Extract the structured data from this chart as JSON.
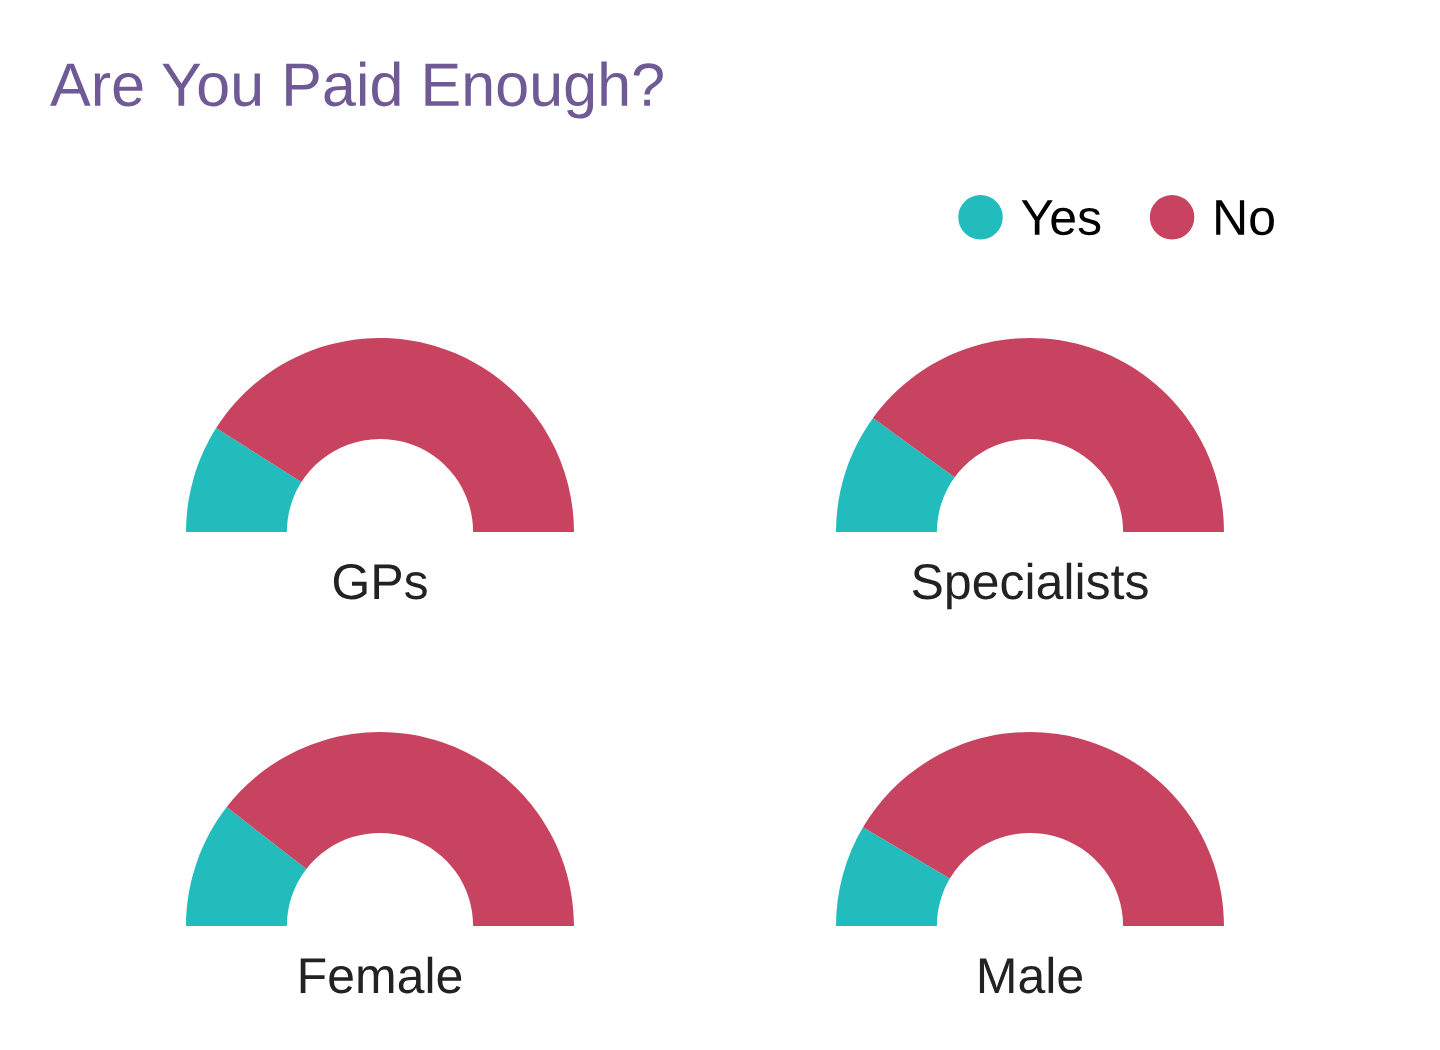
{
  "chart_data": {
    "type": "donut",
    "title": "Are You Paid Enough?",
    "categories": [
      "Yes",
      "No"
    ],
    "colors": [
      "#22bcbc",
      "#c8435f"
    ],
    "legend": "top right",
    "series": [
      {
        "name": "GPs",
        "values": [
          18,
          82
        ]
      },
      {
        "name": "Specialists",
        "values": [
          20,
          80
        ]
      },
      {
        "name": "Female",
        "values": [
          21,
          79
        ]
      },
      {
        "name": "Male",
        "values": [
          17,
          83
        ]
      }
    ]
  }
}
